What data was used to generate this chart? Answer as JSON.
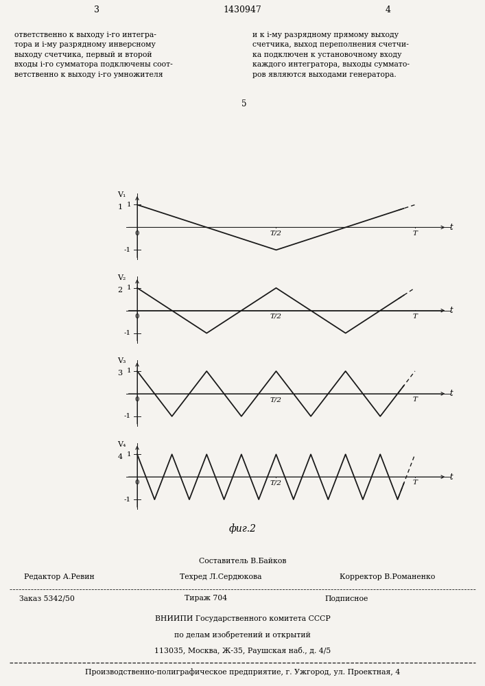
{
  "page_number_left": "3",
  "page_number_center": "1430947",
  "page_number_right": "4",
  "text_left": "ответственно к выходу i-го интегра-\nтора и i-му разрядному инверсному\nвыходу счетчика, первый и второй\nвходы i-го сумматора подключены соот-\nветственно к выходу i-го умножителя",
  "text_right": "и к i-му разрядному прямому выходу\nсчетчика, выход переполнения счетчи-\nка подключен к установочному входу\nкаждого интегратора, выходы суммато-\nров являются выходами генератора.",
  "line_number": "5",
  "fig_caption": "фиг.2",
  "signals": [
    {
      "label_v": "V₁",
      "label_n": "1",
      "freq": 1
    },
    {
      "label_v": "V₂",
      "label_n": "2",
      "freq": 2
    },
    {
      "label_v": "V₃",
      "label_n": "3",
      "freq": 4
    },
    {
      "label_v": "V₄",
      "label_n": "4",
      "freq": 8
    }
  ],
  "footer_line1_center": "Составитель В.Байков",
  "footer_line2_left": "Редактор А.Ревин",
  "footer_line2_center": "Техред Л.Сердюкова",
  "footer_line2_right": "Корректор В.Романенко",
  "footer_line3_left": "Заказ 5342/50",
  "footer_line3_center": "Тираж 704",
  "footer_line3_right": "Подписное",
  "footer_vniipi1": "ВНИИПИ Государственного комитета СССР",
  "footer_vniipi2": "по делам изобретений и открытий",
  "footer_vniipi3": "113035, Москва, Ж-35, Раушская наб., д. 4/5",
  "footer_production": "Производственно-полиграфическое предприятие, г. Ужгород, ул. Проектная, 4",
  "bg_color": "#f5f3ef",
  "line_color": "#1a1a1a"
}
